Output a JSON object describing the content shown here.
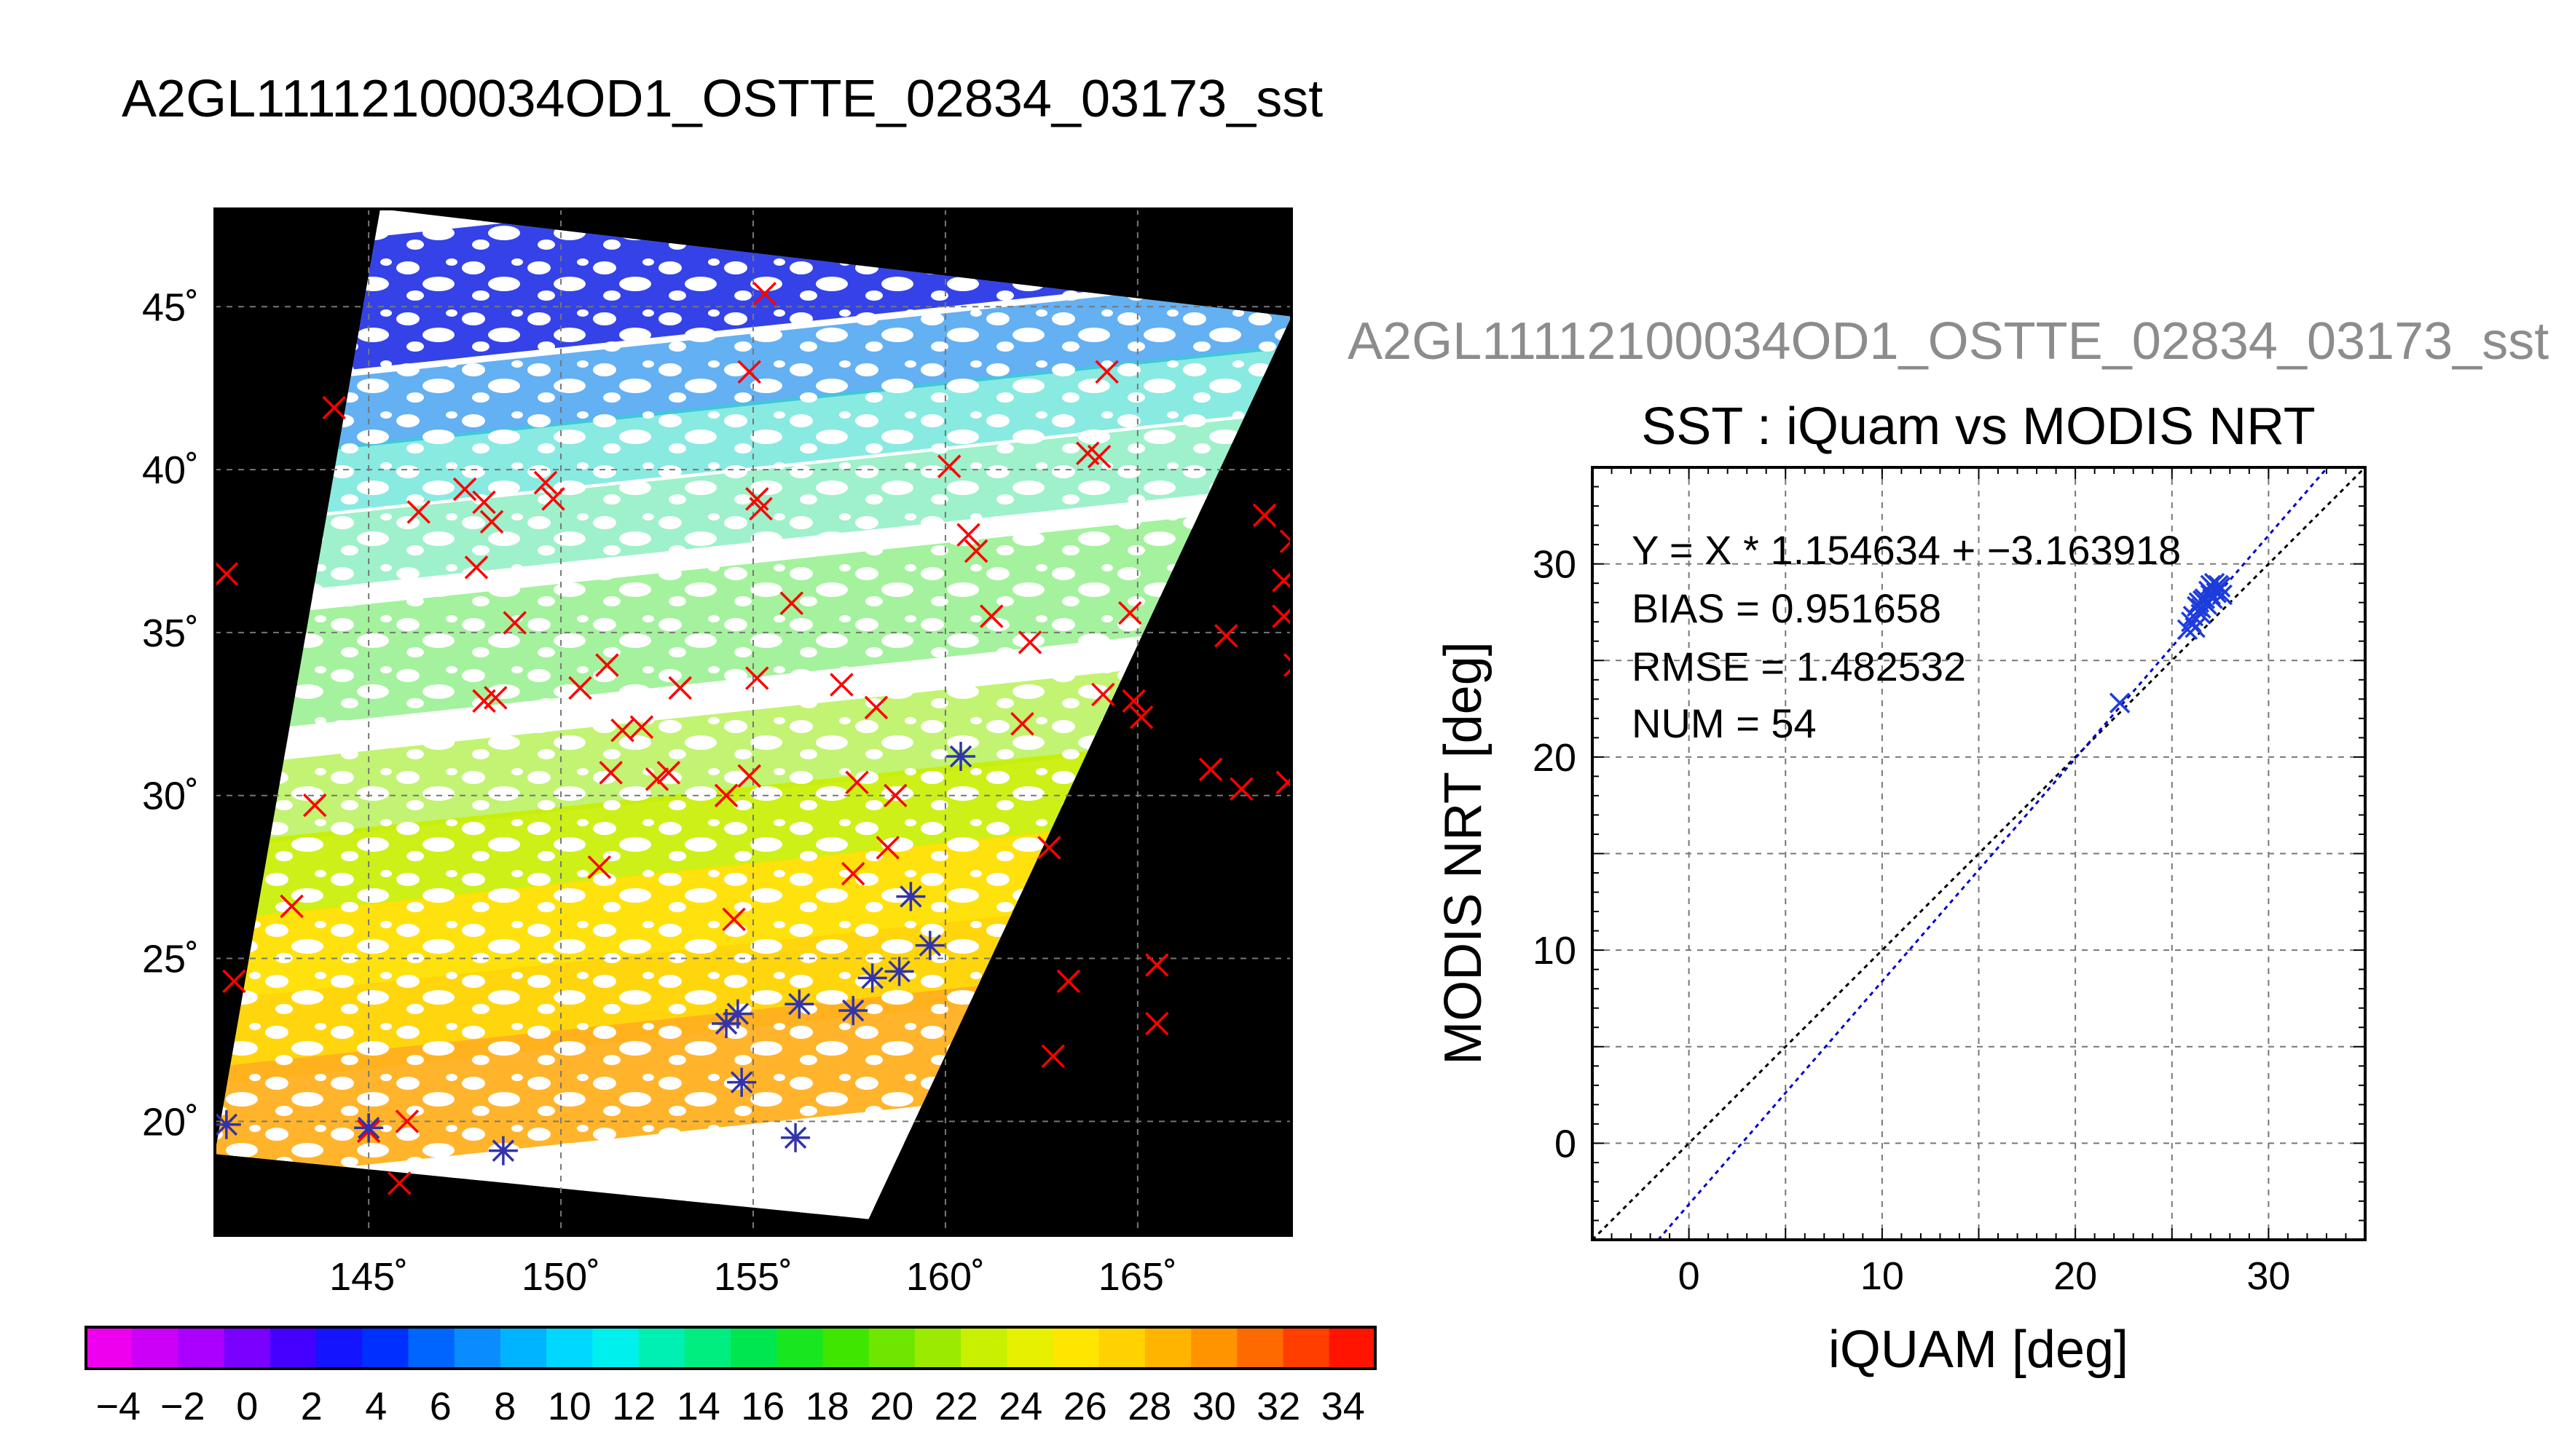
{
  "page": {
    "main_title": "A2GL11112100034OD1_OSTTE_02834_03173_sst",
    "scatter_header": "A2GL11112100034OD1_OSTTE_02834_03173_sst"
  },
  "chart_data": [
    {
      "type": "scatter",
      "subtype": "map",
      "title": "A2GL11112100034OD1_OSTTE_02834_03173_sst",
      "xlim": [
        141,
        169
      ],
      "ylim": [
        16.5,
        48
      ],
      "x_ticks": [
        145,
        150,
        155,
        160,
        165
      ],
      "x_tick_labels": [
        "145˚",
        "150˚",
        "155˚",
        "160˚",
        "165˚"
      ],
      "y_ticks": [
        20,
        25,
        30,
        35,
        40,
        45
      ],
      "y_tick_labels": [
        "20˚",
        "25˚",
        "30˚",
        "35˚",
        "40˚",
        "45˚"
      ],
      "grid": true,
      "swath_corners": [
        [
          145.3,
          48.0
        ],
        [
          169.0,
          44.7
        ],
        [
          158.0,
          17.0
        ],
        [
          141.0,
          19.0
        ]
      ],
      "series": [
        {
          "marker": "x",
          "color": "#ff0000",
          "x": [
            141.3,
            144.1,
            143.6,
            143.0,
            141.5,
            146.0,
            145.8,
            145.0,
            147.5,
            148.0,
            148.2,
            147.8,
            148.0,
            148.8,
            149.6,
            149.8,
            148.3,
            150.5,
            151.2,
            152.5,
            152.8,
            151.3,
            151.6,
            152.1,
            153.1,
            154.3,
            154.9,
            155.3,
            155.1,
            155.2,
            156.0,
            155.1,
            154.5,
            154.9,
            157.3,
            158.2,
            157.7,
            158.7,
            158.5,
            157.6,
            160.1,
            160.6,
            160.8,
            161.2,
            162.0,
            162.2,
            162.7,
            163.7,
            164.0,
            164.2,
            164.8,
            164.1,
            164.9,
            165.1,
            165.5,
            167.3,
            166.9,
            167.7,
            168.3,
            168.8,
            168.8,
            169.0,
            169.1,
            168.9,
            163.2,
            162.8,
            165.5,
            146.3,
            151.0
          ],
          "y": [
            36.8,
            41.9,
            29.7,
            26.6,
            24.3,
            20.0,
            18.1,
            19.7,
            39.4,
            39.0,
            38.4,
            37.0,
            32.9,
            35.3,
            39.6,
            39.1,
            33.0,
            33.3,
            34.0,
            30.5,
            30.7,
            30.7,
            32.0,
            32.1,
            33.3,
            30.0,
            43.0,
            45.4,
            39.1,
            38.8,
            35.9,
            33.6,
            26.2,
            30.6,
            33.4,
            32.7,
            30.4,
            30.0,
            28.4,
            27.6,
            40.1,
            38.0,
            37.5,
            35.5,
            32.2,
            34.7,
            28.4,
            40.5,
            40.4,
            43.0,
            35.6,
            33.1,
            32.9,
            32.4,
            24.8,
            34.9,
            30.8,
            30.2,
            38.6,
            36.6,
            35.5,
            37.8,
            34.0,
            30.4,
            24.3,
            22.0,
            23.0,
            38.7,
            27.8
          ]
        },
        {
          "marker": "asterisk",
          "color": "#3333aa",
          "x": [
            141.3,
            145.0,
            148.5,
            154.3,
            154.6,
            154.7,
            156.1,
            156.2,
            157.6,
            158.1,
            158.8,
            159.1,
            159.6,
            160.4
          ],
          "y": [
            19.9,
            19.8,
            19.1,
            23.0,
            23.3,
            21.2,
            19.5,
            23.6,
            23.4,
            24.4,
            24.6,
            26.9,
            25.4,
            31.2
          ]
        }
      ]
    },
    {
      "type": "scatter",
      "title": "SST : iQuam vs MODIS NRT",
      "xlabel": "iQUAM [deg]",
      "ylabel": "MODIS NRT [deg]",
      "xlim": [
        -5,
        35
      ],
      "ylim": [
        -5,
        35
      ],
      "x_ticks": [
        0,
        10,
        20,
        30
      ],
      "y_ticks": [
        0,
        10,
        20,
        30
      ],
      "grid": true,
      "annotations": [
        "Y = X * 1.154634 + −3.163918",
        "BIAS = 0.951658",
        "RMSE = 1.482532",
        "NUM = 54"
      ],
      "fit": {
        "slope": 1.154634,
        "intercept": -3.163918
      },
      "points": {
        "x": [
          22.3,
          25.8,
          26.0,
          26.1,
          26.2,
          26.3,
          26.4,
          26.5,
          26.5,
          26.6,
          26.7,
          26.8,
          26.9,
          27.0,
          27.0,
          27.1,
          27.2,
          27.2,
          27.3,
          27.4,
          27.5,
          27.6
        ],
        "y": [
          22.8,
          26.6,
          27.0,
          27.3,
          26.7,
          27.8,
          28.0,
          27.4,
          27.7,
          28.1,
          28.2,
          27.9,
          28.6,
          28.4,
          28.9,
          28.2,
          28.7,
          29.0,
          28.5,
          28.9,
          28.8,
          28.4
        ]
      }
    },
    {
      "type": "colorbar",
      "range": [
        -5,
        35
      ],
      "tick_labels": [
        "−4",
        "−2",
        "0",
        "2",
        "4",
        "6",
        "8",
        "10",
        "12",
        "14",
        "16",
        "18",
        "20",
        "22",
        "24",
        "26",
        "28",
        "30",
        "32",
        "34"
      ],
      "colors": [
        "#ee00ee",
        "#cc00f6",
        "#aa00ff",
        "#7a00ff",
        "#4400ff",
        "#1414ff",
        "#0030ff",
        "#0064ff",
        "#0a8cff",
        "#00b4ff",
        "#00d8ff",
        "#00f0ee",
        "#00f0b4",
        "#00ee80",
        "#00e650",
        "#18e61e",
        "#3ee600",
        "#6ee600",
        "#9aeb00",
        "#c8f000",
        "#e6f000",
        "#ffe600",
        "#ffd200",
        "#ffb400",
        "#ff9400",
        "#ff6a00",
        "#ff3e00",
        "#ff1400"
      ]
    }
  ],
  "colors": {
    "map_background": "#000000",
    "match_marker": "#ff0000",
    "collocation_marker": "#3333aa",
    "fit_line": "#0000cc",
    "identity_line": "#000000"
  }
}
